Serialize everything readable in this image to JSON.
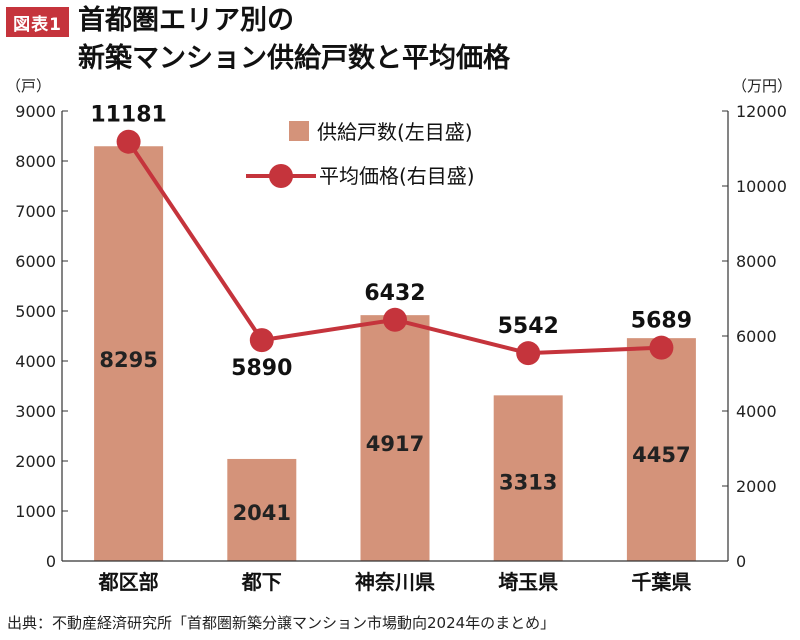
{
  "figure_label": "図表1",
  "title_lines": [
    "首都圏エリア別の",
    "新築マンション供給戸数と平均価格"
  ],
  "source": "出典：不動産経済研究所「首都圏新築分譲マンション市場動向2024年のまとめ」",
  "colors": {
    "bar": "#d4937a",
    "line": "#c5343c",
    "badge": "#c5343c"
  },
  "chart_data": {
    "type": "bar",
    "categories": [
      "都区部",
      "都下",
      "神奈川県",
      "埼玉県",
      "千葉県"
    ],
    "series": [
      {
        "name": "供給戸数(左目盛)",
        "type": "bar",
        "axis": "left",
        "values": [
          8295,
          2041,
          4917,
          3313,
          4457
        ]
      },
      {
        "name": "平均価格(右目盛)",
        "type": "line",
        "axis": "right",
        "values": [
          11181,
          5890,
          6432,
          5542,
          5689
        ]
      }
    ],
    "left_axis": {
      "unit": "（戸）",
      "min": 0,
      "max": 9000,
      "ticks": [
        0,
        1000,
        2000,
        3000,
        4000,
        5000,
        6000,
        7000,
        8000,
        9000
      ]
    },
    "right_axis": {
      "unit": "（万円）",
      "min": 0,
      "max": 12000,
      "ticks": [
        0,
        2000,
        4000,
        6000,
        8000,
        10000,
        12000
      ]
    },
    "legend_position": "top-center",
    "grid": false
  }
}
